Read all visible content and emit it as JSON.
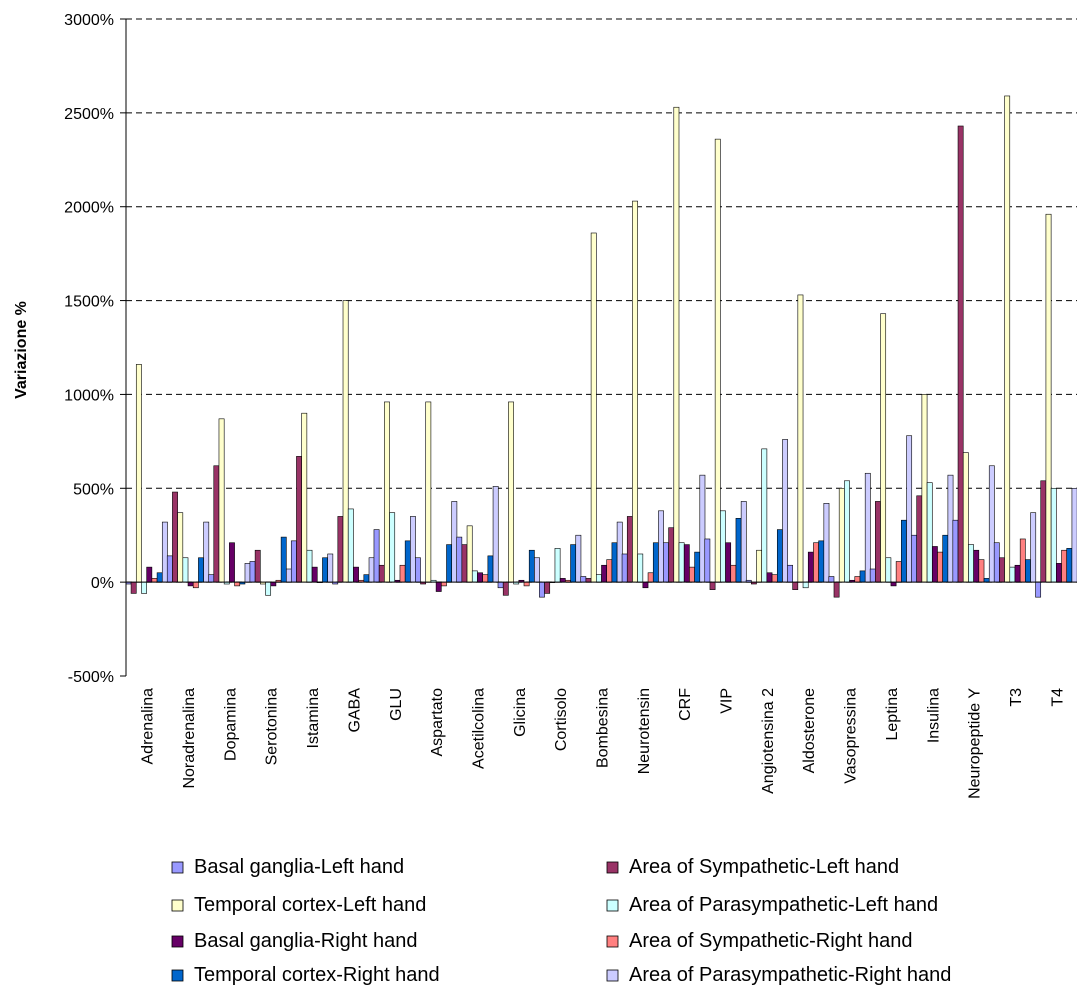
{
  "chart_data": {
    "type": "bar",
    "title": "",
    "xlabel": "",
    "ylabel": "Variazione %",
    "ylim": [
      -500,
      3000
    ],
    "yticks": [
      -500,
      0,
      500,
      1000,
      1500,
      2000,
      2500,
      3000
    ],
    "ytick_labels": [
      "-500%",
      "0%",
      "500%",
      "1000%",
      "1500%",
      "2000%",
      "2500%",
      "3000%"
    ],
    "grid": "horizontal dashed",
    "legend_position": "bottom",
    "categories": [
      "Adrenalina",
      "Noradrenalina",
      "Dopamina",
      "Serotonina",
      "Istamina",
      "GABA",
      "GLU",
      "Aspartato",
      "Acetilcolina",
      "Glicina",
      "Cortisolo",
      "Bombesina",
      "Neurotensin",
      "CRF",
      "VIP",
      "Angiotensina 2",
      "Aldosterone",
      "Vasopressina",
      "Leptina",
      "Insulina",
      "Neuropeptide Y",
      "T3",
      "T4"
    ],
    "series": [
      {
        "name": "Basal ganglia-Left hand",
        "color": "#9999ff",
        "values": [
          -10,
          140,
          40,
          110,
          220,
          -10,
          280,
          130,
          240,
          -30,
          -80,
          30,
          150,
          210,
          230,
          10,
          90,
          30,
          70,
          250,
          330,
          210,
          -80
        ]
      },
      {
        "name": "Area of Sympathetic-Left hand",
        "color": "#993366",
        "values": [
          -60,
          480,
          620,
          170,
          670,
          350,
          90,
          -10,
          200,
          -70,
          -60,
          20,
          350,
          290,
          -40,
          -10,
          -40,
          -80,
          430,
          460,
          2430,
          130,
          540
        ]
      },
      {
        "name": "Temporal cortex-Left hand",
        "color": "#ffffcc",
        "values": [
          1160,
          370,
          870,
          -10,
          900,
          1500,
          960,
          960,
          300,
          960,
          0,
          1860,
          2030,
          2530,
          2360,
          170,
          1530,
          500,
          1430,
          1000,
          690,
          2590,
          1960
        ]
      },
      {
        "name": "Area of Parasympathetic-Left hand",
        "color": "#ccffff",
        "values": [
          -60,
          130,
          -10,
          -70,
          170,
          390,
          370,
          10,
          60,
          -10,
          180,
          40,
          150,
          210,
          380,
          710,
          -30,
          540,
          130,
          530,
          200,
          80,
          500
        ]
      },
      {
        "name": "Basal ganglia-Right hand",
        "color": "#660066",
        "values": [
          80,
          -20,
          210,
          -20,
          80,
          80,
          10,
          -50,
          50,
          10,
          20,
          90,
          -30,
          200,
          210,
          50,
          160,
          10,
          -20,
          190,
          170,
          90,
          100
        ]
      },
      {
        "name": "Area of Sympathetic-Right hand",
        "color": "#ff8080",
        "values": [
          20,
          -30,
          -20,
          10,
          0,
          10,
          90,
          -20,
          40,
          -20,
          10,
          120,
          50,
          80,
          90,
          40,
          210,
          30,
          110,
          160,
          120,
          230,
          170
        ]
      },
      {
        "name": "Temporal cortex-Right hand",
        "color": "#0066cc",
        "values": [
          50,
          130,
          -10,
          240,
          130,
          40,
          220,
          200,
          140,
          170,
          200,
          210,
          210,
          160,
          340,
          280,
          220,
          60,
          330,
          250,
          20,
          120,
          180
        ]
      },
      {
        "name": "Area of Parasympathetic-Right hand",
        "color": "#ccccff",
        "values": [
          320,
          320,
          100,
          70,
          150,
          130,
          350,
          430,
          510,
          130,
          250,
          320,
          380,
          570,
          430,
          760,
          420,
          580,
          780,
          570,
          620,
          370,
          500
        ]
      }
    ],
    "legend_order": [
      0,
      1,
      2,
      3,
      4,
      5,
      6,
      7
    ]
  }
}
